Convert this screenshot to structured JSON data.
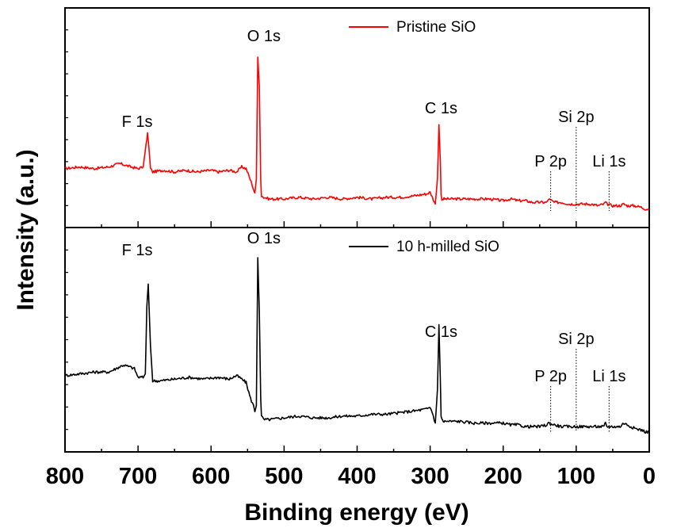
{
  "chart_data": {
    "type": "line",
    "xlabel": "Binding energy (eV)",
    "ylabel": "Intensity (a.u.)",
    "xlim": [
      800,
      0
    ],
    "x_ticks": [
      "800",
      "700",
      "600",
      "500",
      "400",
      "300",
      "200",
      "100",
      "0"
    ],
    "panels": [
      {
        "name": "top",
        "ylim": [
          0,
          100
        ],
        "series": [
          {
            "name": "Pristine SiO",
            "color": "#ff0000",
            "x": [
              800,
              780,
              760,
              740,
              725,
              710,
              700,
              693,
              689,
              687,
              685,
              683,
              680,
              665,
              650,
              635,
              620,
              600,
              590,
              575,
              565,
              558,
              552,
              545,
              542,
              540,
              538,
              536,
              534,
              532,
              531,
              528,
              520,
              500,
              480,
              460,
              440,
              420,
              400,
              380,
              360,
              340,
              320,
              305,
              300,
              297,
              293,
              290,
              288,
              286,
              285,
              284,
              282,
              280,
              260,
              240,
              220,
              200,
              190,
              180,
              170,
              160,
              150,
              140,
              138,
              130,
              120,
              110,
              100,
              90,
              80,
              70,
              62,
              60,
              58,
              50,
              40,
              35,
              30,
              20,
              10,
              5,
              0
            ],
            "y": [
              26,
              27,
              26,
              27,
              29,
              27,
              26,
              27,
              40,
              47,
              38,
              26,
              24,
              25,
              24,
              25,
              24,
              25,
              24,
              25,
              24,
              27,
              26,
              18,
              14,
              11,
              20,
              92,
              75,
              20,
              10,
              9,
              8,
              8,
              9,
              8,
              9,
              8,
              9,
              8,
              9,
              9,
              10,
              11,
              12,
              9,
              5,
              20,
              52,
              30,
              10,
              8,
              8,
              8,
              8,
              8,
              8,
              7,
              8,
              7,
              7,
              6,
              6,
              6,
              8,
              6,
              6,
              5,
              5,
              5,
              5,
              4,
              5,
              6,
              5,
              4,
              4,
              5,
              4,
              4,
              3,
              2,
              2
            ]
          }
        ],
        "annotations": [
          {
            "text": "F 1s",
            "x": 687
          },
          {
            "text": "O 1s",
            "x": 532
          },
          {
            "text": "C 1s",
            "x": 285
          },
          {
            "text": "Si 2p",
            "x": 100
          },
          {
            "text": "P 2p",
            "x": 135
          },
          {
            "text": "Li 1s",
            "x": 55
          }
        ]
      },
      {
        "name": "bottom",
        "ylim": [
          0,
          100
        ],
        "series": [
          {
            "name": "10 h-milled SiO",
            "color": "#000000",
            "x": [
              800,
              780,
              760,
              740,
              730,
              720,
              712,
              705,
              700,
              693,
              690,
              688,
              686,
              683,
              680,
              670,
              650,
              630,
              610,
              590,
              575,
              565,
              558,
              552,
              546,
              542,
              540,
              538,
              536,
              534,
              532,
              531,
              528,
              520,
              500,
              480,
              460,
              440,
              420,
              400,
              380,
              360,
              340,
              320,
              305,
              300,
              297,
              293,
              290,
              288,
              286,
              285,
              284,
              282,
              280,
              260,
              240,
              220,
              200,
              190,
              180,
              170,
              160,
              150,
              140,
              138,
              130,
              120,
              110,
              100,
              90,
              80,
              70,
              62,
              60,
              58,
              50,
              40,
              35,
              30,
              20,
              10,
              5,
              0
            ],
            "y": [
              33,
              34,
              35,
              35,
              37,
              39,
              38,
              37,
              32,
              32,
              34,
              72,
              85,
              50,
              30,
              30,
              31,
              32,
              31,
              32,
              31,
              33,
              31,
              29,
              20,
              16,
              13,
              16,
              100,
              70,
              20,
              10,
              8,
              8,
              9,
              10,
              9,
              9,
              10,
              10,
              11,
              11,
              12,
              13,
              14,
              15,
              12,
              6,
              25,
              62,
              30,
              10,
              8,
              7,
              7,
              7,
              6,
              6,
              6,
              5,
              5,
              4,
              4,
              4,
              5,
              6,
              5,
              4,
              4,
              4,
              4,
              4,
              4,
              4,
              6,
              4,
              4,
              4,
              6,
              5,
              3,
              2,
              1,
              1
            ]
          }
        ],
        "annotations": [
          {
            "text": "F 1s",
            "x": 687
          },
          {
            "text": "O 1s",
            "x": 532
          },
          {
            "text": "C 1s",
            "x": 285
          },
          {
            "text": "Si 2p",
            "x": 100
          },
          {
            "text": "P 2p",
            "x": 135
          },
          {
            "text": "Li 1s",
            "x": 55
          }
        ]
      }
    ],
    "grid": false,
    "legend": "top-right"
  }
}
